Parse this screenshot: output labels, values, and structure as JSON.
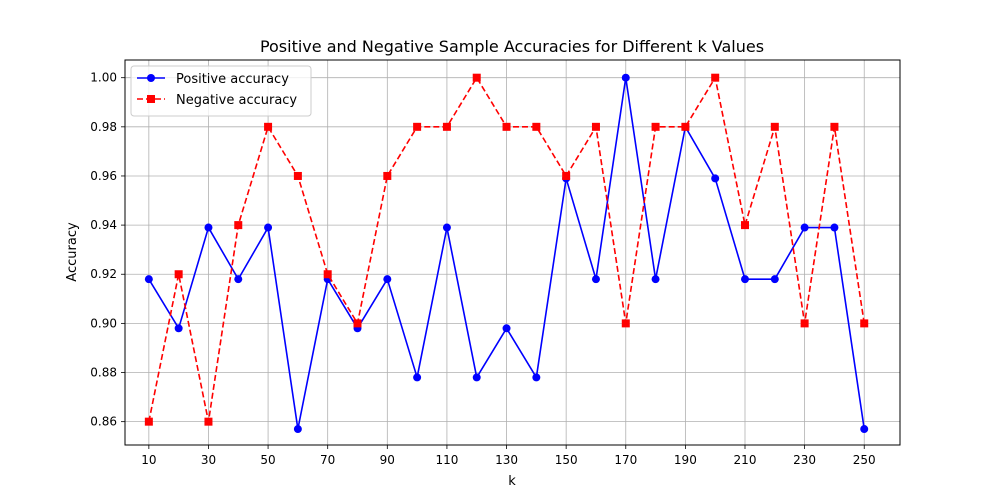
{
  "chart_data": {
    "type": "line",
    "title": "Positive and Negative Sample Accuracies for Different k Values",
    "xlabel": "k",
    "ylabel": "Accuracy",
    "x": [
      10,
      20,
      30,
      40,
      50,
      60,
      70,
      80,
      90,
      100,
      110,
      120,
      130,
      140,
      150,
      160,
      170,
      180,
      190,
      200,
      210,
      220,
      230,
      240,
      250
    ],
    "xticks": [
      10,
      30,
      50,
      70,
      90,
      110,
      130,
      150,
      170,
      190,
      210,
      230,
      250
    ],
    "yticks": [
      0.86,
      0.88,
      0.9,
      0.92,
      0.94,
      0.96,
      0.98,
      1.0
    ],
    "ytick_labels": [
      "0.86",
      "0.88",
      "0.90",
      "0.92",
      "0.94",
      "0.96",
      "0.98",
      "1.00"
    ],
    "xlim": [
      2,
      262
    ],
    "ylim": [
      0.8505,
      1.0072
    ],
    "grid": true,
    "legend_position": "top-left",
    "series": [
      {
        "name": "Positive accuracy",
        "color": "#0000ff",
        "line_style": "solid",
        "marker": "circle",
        "values": [
          0.918,
          0.898,
          0.939,
          0.918,
          0.939,
          0.857,
          0.918,
          0.898,
          0.918,
          0.878,
          0.939,
          0.878,
          0.898,
          0.878,
          0.959,
          0.918,
          1.0,
          0.918,
          0.98,
          0.959,
          0.918,
          0.918,
          0.939,
          0.939,
          0.857
        ]
      },
      {
        "name": "Negative accuracy",
        "color": "#ff0000",
        "line_style": "dashed",
        "marker": "square",
        "values": [
          0.86,
          0.92,
          0.86,
          0.94,
          0.98,
          0.96,
          0.92,
          0.9,
          0.96,
          0.98,
          0.98,
          1.0,
          0.98,
          0.98,
          0.96,
          0.98,
          0.9,
          0.98,
          0.98,
          1.0,
          0.94,
          0.98,
          0.9,
          0.98,
          0.9
        ]
      }
    ]
  }
}
